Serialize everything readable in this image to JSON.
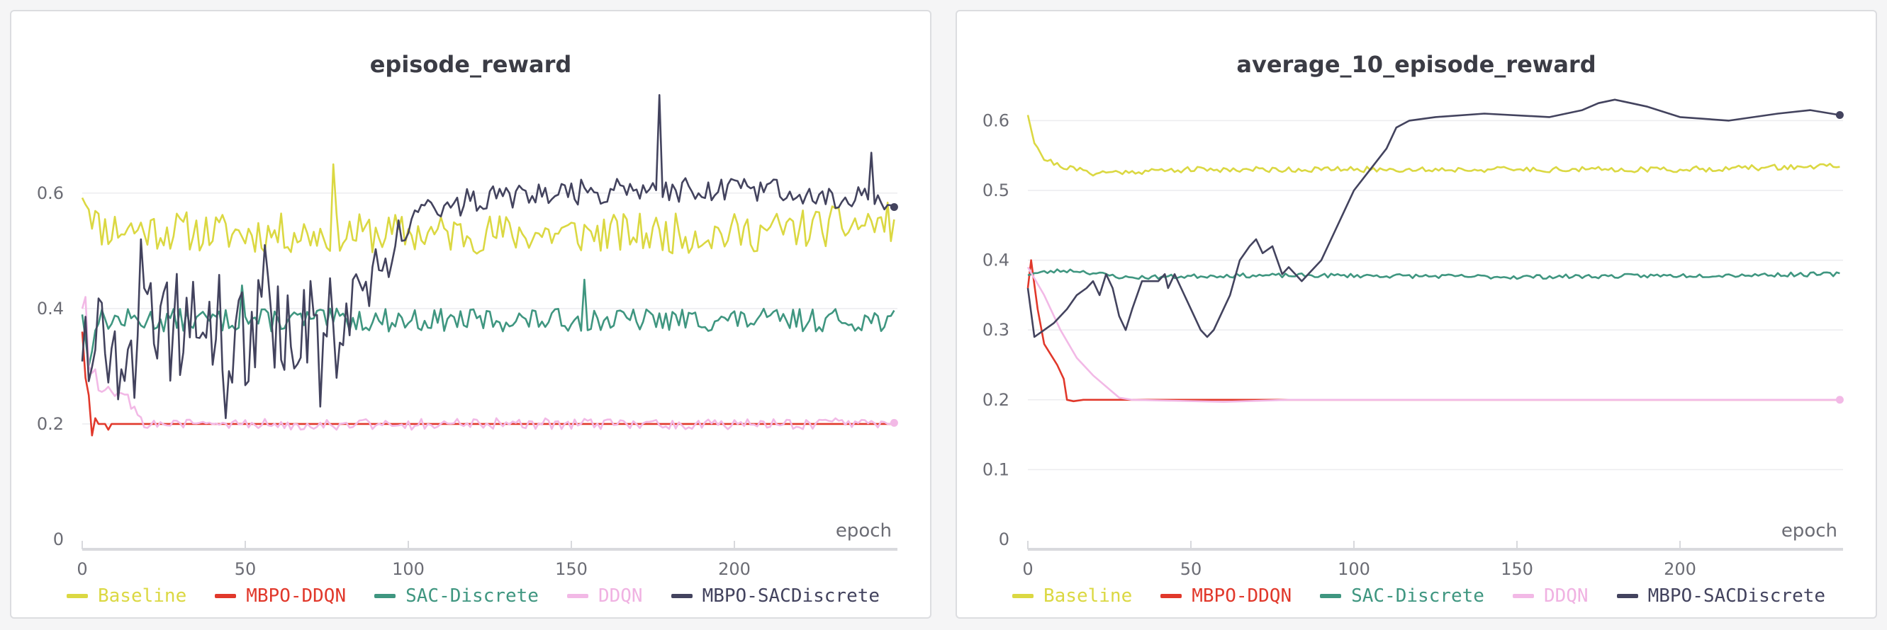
{
  "colors": {
    "baseline": "#dbd842",
    "mbpo_ddqn": "#e1382b",
    "sac_discrete": "#3f9680",
    "ddqn": "#f2b9e6",
    "mbpo_sacdiscrete": "#43435e",
    "grid": "#ececef",
    "axis": "#d8d9dd"
  },
  "chart_data": [
    {
      "type": "line",
      "title": "episode_reward",
      "xlabel": "epoch",
      "ylabel": "",
      "xlim": [
        0,
        250
      ],
      "ylim": [
        0,
        0.78
      ],
      "xticks": [
        0,
        50,
        100,
        150,
        200
      ],
      "xtick_labels": [
        "0",
        "50",
        "100",
        "150",
        "200"
      ],
      "yticks": [
        0,
        0.2,
        0.4,
        0.6
      ],
      "ytick_labels": [
        "0",
        "0.2",
        "0.4",
        "0.6"
      ],
      "grid": true,
      "legend_position": "bottom",
      "series": [
        {
          "name": "Baseline",
          "color_key": "baseline",
          "kind": "noise",
          "x_end": 249,
          "seed": 11,
          "anchors": [
            [
              0,
              0.61
            ],
            [
              5,
              0.54
            ],
            [
              50,
              0.53
            ],
            [
              100,
              0.53
            ],
            [
              150,
              0.53
            ],
            [
              200,
              0.53
            ],
            [
              249,
              0.55
            ]
          ],
          "noise": [
            [
              0,
              0.035
            ],
            [
              249,
              0.035
            ]
          ],
          "spikes": [
            [
              77,
              0.65
            ],
            [
              79,
              0.5
            ]
          ],
          "end_marker": false
        },
        {
          "name": "MBPO-DDQN",
          "color_key": "mbpo_ddqn",
          "kind": "path",
          "x_end": 249,
          "seed": 12,
          "points": [
            [
              0,
              0.36
            ],
            [
              1,
              0.28
            ],
            [
              2,
              0.25
            ],
            [
              3,
              0.18
            ],
            [
              4,
              0.21
            ],
            [
              5,
              0.2
            ],
            [
              6,
              0.2
            ],
            [
              7,
              0.2
            ],
            [
              8,
              0.19
            ],
            [
              9,
              0.2
            ],
            [
              10,
              0.2
            ],
            [
              249,
              0.2
            ]
          ],
          "end_marker": false
        },
        {
          "name": "SAC-Discrete",
          "color_key": "sac_discrete",
          "kind": "noise",
          "x_end": 249,
          "seed": 13,
          "anchors": [
            [
              0,
              0.4
            ],
            [
              2,
              0.3
            ],
            [
              4,
              0.38
            ],
            [
              10,
              0.38
            ],
            [
              100,
              0.38
            ],
            [
              150,
              0.38
            ],
            [
              249,
              0.38
            ]
          ],
          "noise": [
            [
              0,
              0.02
            ],
            [
              249,
              0.02
            ]
          ],
          "spikes": [
            [
              2,
              0.3
            ],
            [
              49,
              0.44
            ],
            [
              154,
              0.45
            ]
          ],
          "end_marker": false
        },
        {
          "name": "DDQN",
          "color_key": "ddqn",
          "kind": "noise",
          "x_end": 249,
          "seed": 14,
          "anchors": [
            [
              0,
              0.41
            ],
            [
              3,
              0.3
            ],
            [
              6,
              0.26
            ],
            [
              14,
              0.26
            ],
            [
              16,
              0.22
            ],
            [
              20,
              0.2
            ],
            [
              249,
              0.2
            ]
          ],
          "noise": [
            [
              0,
              0.02
            ],
            [
              15,
              0.015
            ],
            [
              22,
              0.01
            ],
            [
              249,
              0.01
            ]
          ],
          "spikes": [
            [
              1,
              0.42
            ],
            [
              2,
              0.3
            ]
          ],
          "end_marker": true
        },
        {
          "name": "MBPO-SACDiscrete",
          "color_key": "mbpo_sacdiscrete",
          "kind": "noise",
          "x_end": 249,
          "seed": 15,
          "anchors": [
            [
              0,
              0.36
            ],
            [
              10,
              0.34
            ],
            [
              40,
              0.36
            ],
            [
              80,
              0.37
            ],
            [
              90,
              0.45
            ],
            [
              100,
              0.55
            ],
            [
              108,
              0.58
            ],
            [
              150,
              0.6
            ],
            [
              200,
              0.61
            ],
            [
              249,
              0.585
            ]
          ],
          "noise": [
            [
              0,
              0.1
            ],
            [
              75,
              0.1
            ],
            [
              90,
              0.06
            ],
            [
              100,
              0.025
            ],
            [
              249,
              0.02
            ]
          ],
          "spikes": [
            [
              18,
              0.52
            ],
            [
              29,
              0.46
            ],
            [
              44,
              0.21
            ],
            [
              56,
              0.51
            ],
            [
              73,
              0.23
            ],
            [
              77,
              0.37
            ],
            [
              177,
              0.77
            ],
            [
              242,
              0.67
            ]
          ],
          "end_marker": true
        }
      ]
    },
    {
      "type": "line",
      "title": "average_10_episode_reward",
      "xlabel": "epoch",
      "ylabel": "",
      "xlim": [
        0,
        250
      ],
      "ylim": [
        0,
        0.645
      ],
      "xticks": [
        0,
        50,
        100,
        150,
        200
      ],
      "xtick_labels": [
        "0",
        "50",
        "100",
        "150",
        "200"
      ],
      "yticks": [
        0,
        0.1,
        0.2,
        0.3,
        0.4,
        0.5,
        0.6
      ],
      "ytick_labels": [
        "0",
        "0.1",
        "0.2",
        "0.3",
        "0.4",
        "0.5",
        "0.6"
      ],
      "grid": true,
      "legend_position": "bottom",
      "series": [
        {
          "name": "Baseline",
          "color_key": "baseline",
          "kind": "noise",
          "x_end": 249,
          "seed": 21,
          "anchors": [
            [
              0,
              0.61
            ],
            [
              2,
              0.57
            ],
            [
              5,
              0.545
            ],
            [
              10,
              0.535
            ],
            [
              20,
              0.525
            ],
            [
              50,
              0.53
            ],
            [
              100,
              0.53
            ],
            [
              150,
              0.53
            ],
            [
              200,
              0.53
            ],
            [
              249,
              0.535
            ]
          ],
          "noise": [
            [
              0,
              0.004
            ],
            [
              249,
              0.004
            ]
          ],
          "spikes": [],
          "end_marker": false
        },
        {
          "name": "MBPO-DDQN",
          "color_key": "mbpo_ddqn",
          "kind": "path",
          "x_end": 249,
          "seed": 22,
          "points": [
            [
              0,
              0.36
            ],
            [
              1,
              0.4
            ],
            [
              3,
              0.33
            ],
            [
              5,
              0.28
            ],
            [
              9,
              0.25
            ],
            [
              11,
              0.23
            ],
            [
              12,
              0.2
            ],
            [
              14,
              0.198
            ],
            [
              17,
              0.2
            ],
            [
              249,
              0.2
            ]
          ],
          "end_marker": false
        },
        {
          "name": "SAC-Discrete",
          "color_key": "sac_discrete",
          "kind": "noise",
          "x_end": 249,
          "seed": 23,
          "anchors": [
            [
              0,
              0.38
            ],
            [
              10,
              0.385
            ],
            [
              15,
              0.385
            ],
            [
              30,
              0.375
            ],
            [
              60,
              0.378
            ],
            [
              100,
              0.378
            ],
            [
              150,
              0.376
            ],
            [
              249,
              0.38
            ]
          ],
          "noise": [
            [
              0,
              0.003
            ],
            [
              249,
              0.003
            ]
          ],
          "spikes": [],
          "end_marker": false
        },
        {
          "name": "DDQN",
          "color_key": "ddqn",
          "kind": "path",
          "x_end": 249,
          "seed": 24,
          "points": [
            [
              0,
              0.39
            ],
            [
              5,
              0.35
            ],
            [
              10,
              0.3
            ],
            [
              15,
              0.26
            ],
            [
              20,
              0.235
            ],
            [
              25,
              0.215
            ],
            [
              28,
              0.203
            ],
            [
              32,
              0.2
            ],
            [
              60,
              0.197
            ],
            [
              80,
              0.2
            ],
            [
              249,
              0.2
            ]
          ],
          "end_marker": true
        },
        {
          "name": "MBPO-SACDiscrete",
          "color_key": "mbpo_sacdiscrete",
          "kind": "path",
          "x_end": 249,
          "seed": 25,
          "points": [
            [
              0,
              0.36
            ],
            [
              2,
              0.29
            ],
            [
              5,
              0.3
            ],
            [
              8,
              0.31
            ],
            [
              12,
              0.33
            ],
            [
              15,
              0.35
            ],
            [
              18,
              0.36
            ],
            [
              20,
              0.37
            ],
            [
              22,
              0.35
            ],
            [
              24,
              0.38
            ],
            [
              26,
              0.36
            ],
            [
              28,
              0.32
            ],
            [
              30,
              0.3
            ],
            [
              32,
              0.33
            ],
            [
              35,
              0.37
            ],
            [
              40,
              0.37
            ],
            [
              42,
              0.38
            ],
            [
              43,
              0.36
            ],
            [
              45,
              0.38
            ],
            [
              47,
              0.36
            ],
            [
              50,
              0.33
            ],
            [
              53,
              0.3
            ],
            [
              55,
              0.29
            ],
            [
              57,
              0.3
            ],
            [
              60,
              0.33
            ],
            [
              62,
              0.35
            ],
            [
              65,
              0.4
            ],
            [
              68,
              0.42
            ],
            [
              70,
              0.43
            ],
            [
              72,
              0.41
            ],
            [
              75,
              0.42
            ],
            [
              78,
              0.38
            ],
            [
              80,
              0.39
            ],
            [
              82,
              0.38
            ],
            [
              84,
              0.37
            ],
            [
              86,
              0.38
            ],
            [
              90,
              0.4
            ],
            [
              93,
              0.43
            ],
            [
              97,
              0.47
            ],
            [
              100,
              0.5
            ],
            [
              105,
              0.53
            ],
            [
              110,
              0.56
            ],
            [
              113,
              0.59
            ],
            [
              117,
              0.6
            ],
            [
              125,
              0.605
            ],
            [
              140,
              0.61
            ],
            [
              160,
              0.605
            ],
            [
              170,
              0.615
            ],
            [
              175,
              0.625
            ],
            [
              180,
              0.63
            ],
            [
              185,
              0.625
            ],
            [
              190,
              0.62
            ],
            [
              200,
              0.605
            ],
            [
              215,
              0.6
            ],
            [
              230,
              0.61
            ],
            [
              240,
              0.615
            ],
            [
              249,
              0.608
            ]
          ],
          "end_marker": true
        }
      ]
    }
  ]
}
